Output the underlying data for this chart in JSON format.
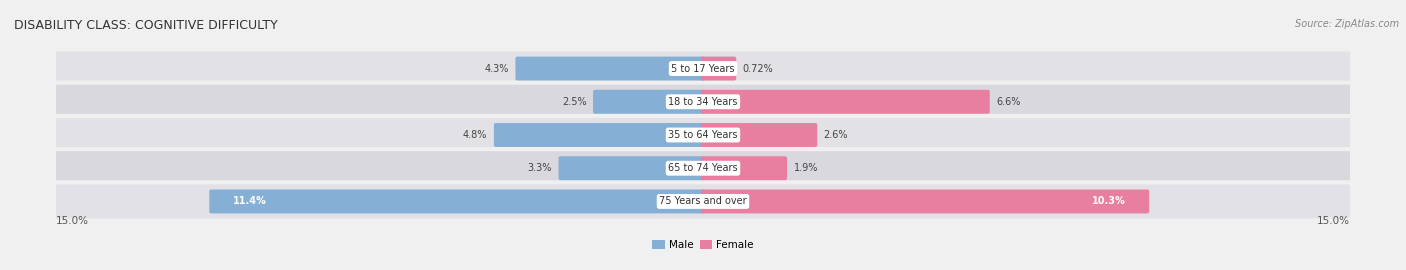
{
  "title": "DISABILITY CLASS: COGNITIVE DIFFICULTY",
  "source": "Source: ZipAtlas.com",
  "categories": [
    "5 to 17 Years",
    "18 to 34 Years",
    "35 to 64 Years",
    "65 to 74 Years",
    "75 Years and over"
  ],
  "male_values": [
    4.3,
    2.5,
    4.8,
    3.3,
    11.4
  ],
  "female_values": [
    0.72,
    6.6,
    2.6,
    1.9,
    10.3
  ],
  "max_val": 15.0,
  "male_color": "#85afd4",
  "female_color": "#e87fa0",
  "row_bg_color": "#e2e2e6",
  "row_bg_alt": "#d8d8de",
  "label_color": "#555555",
  "title_color": "#333333",
  "white": "#ffffff",
  "legend_male_color": "#85afd4",
  "legend_female_color": "#e87fa0",
  "fig_bg": "#f0f0f0"
}
